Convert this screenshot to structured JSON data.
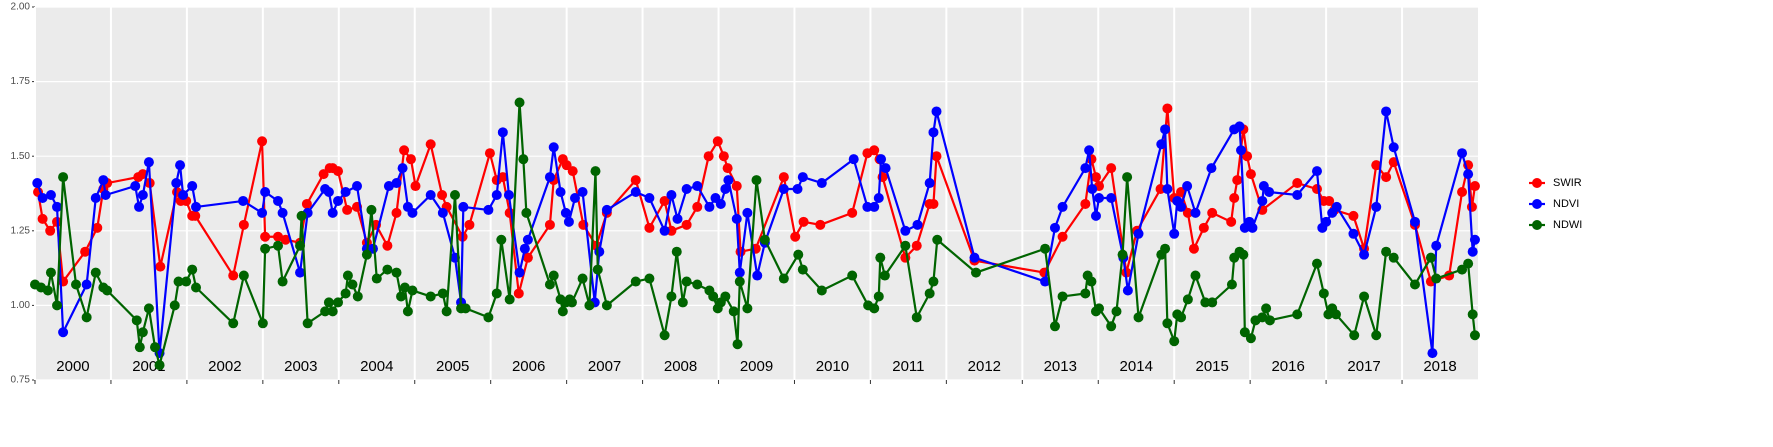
{
  "chart_data": {
    "type": "line",
    "xlim": [
      2000,
      2019
    ],
    "xticks": [
      2000,
      2001,
      2002,
      2003,
      2004,
      2005,
      2006,
      2007,
      2008,
      2009,
      2010,
      2011,
      2012,
      2013,
      2014,
      2015,
      2016,
      2017,
      2018
    ],
    "ylim": [
      0.75,
      2.0
    ],
    "yticks": [
      {
        "value": 0.75,
        "label": "0.75"
      },
      {
        "value": 1.0,
        "label": "1.00"
      },
      {
        "value": 1.25,
        "label": "1.25"
      },
      {
        "value": 1.5,
        "label": "1.50"
      },
      {
        "value": 1.75,
        "label": "1.75"
      },
      {
        "value": 2.0,
        "label": "2.00"
      }
    ],
    "grid": true,
    "legend": "right",
    "series": [
      {
        "name": "SWIR",
        "color": "#ff0000",
        "x": [
          2000.04,
          2000.1,
          2000.2,
          2000.29,
          2000.37,
          2000.66,
          2000.82,
          2000.9,
          2000.95,
          2001.36,
          2001.42,
          2001.51,
          2001.65,
          2001.87,
          2001.92,
          2001.99,
          2002.07,
          2002.11,
          2002.61,
          2002.75,
          2002.99,
          2003.03,
          2003.2,
          2003.3,
          2003.49,
          2003.58,
          2003.8,
          2003.88,
          2003.92,
          2003.99,
          2004.11,
          2004.24,
          2004.37,
          2004.49,
          2004.64,
          2004.76,
          2004.86,
          2004.95,
          2005.01,
          2005.21,
          2005.36,
          2005.42,
          2005.63,
          2005.72,
          2005.99,
          2006.08,
          2006.16,
          2006.25,
          2006.37,
          2006.49,
          2006.78,
          2006.83,
          2006.95,
          2007.0,
          2007.08,
          2007.22,
          2007.39,
          2007.53,
          2007.91,
          2008.09,
          2008.29,
          2008.38,
          2008.58,
          2008.72,
          2008.87,
          2008.99,
          2009.07,
          2009.12,
          2009.24,
          2009.29,
          2009.49,
          2009.86,
          2010.01,
          2010.12,
          2010.34,
          2010.76,
          2010.96,
          2011.05,
          2011.12,
          2011.16,
          2011.46,
          2011.61,
          2011.78,
          2011.83,
          2011.87,
          2012.37,
          2013.29,
          2013.53,
          2013.83,
          2013.91,
          2013.97,
          2014.01,
          2014.17,
          2014.37,
          2014.51,
          2014.82,
          2014.91,
          2015.0,
          2015.09,
          2015.18,
          2015.26,
          2015.39,
          2015.5,
          2015.75,
          2015.79,
          2015.83,
          2015.91,
          2015.96,
          2016.01,
          2016.16,
          2016.62,
          2016.88,
          2016.97,
          2017.04,
          2017.11,
          2017.36,
          2017.5,
          2017.66,
          2017.79,
          2017.89,
          2018.17,
          2018.38,
          2018.62,
          2018.79,
          2018.87,
          2018.92,
          2018.96
        ],
        "values": [
          1.38,
          1.29,
          1.25,
          1.28,
          1.08,
          1.18,
          1.26,
          1.39,
          1.41,
          1.43,
          1.44,
          1.41,
          1.13,
          1.38,
          1.35,
          1.35,
          1.3,
          1.3,
          1.1,
          1.27,
          1.55,
          1.23,
          1.23,
          1.22,
          1.21,
          1.34,
          1.44,
          1.46,
          1.46,
          1.45,
          1.32,
          1.33,
          1.21,
          1.27,
          1.2,
          1.31,
          1.52,
          1.49,
          1.4,
          1.54,
          1.37,
          1.33,
          1.23,
          1.27,
          1.51,
          1.42,
          1.43,
          1.31,
          1.04,
          1.16,
          1.27,
          1.42,
          1.49,
          1.47,
          1.45,
          1.27,
          1.2,
          1.31,
          1.42,
          1.26,
          1.35,
          1.25,
          1.27,
          1.33,
          1.5,
          1.55,
          1.5,
          1.46,
          1.4,
          1.18,
          1.19,
          1.43,
          1.23,
          1.28,
          1.27,
          1.31,
          1.51,
          1.52,
          1.49,
          1.43,
          1.16,
          1.2,
          1.34,
          1.34,
          1.5,
          1.15,
          1.11,
          1.23,
          1.34,
          1.49,
          1.43,
          1.4,
          1.46,
          1.11,
          1.25,
          1.39,
          1.66,
          1.36,
          1.38,
          1.31,
          1.19,
          1.26,
          1.31,
          1.28,
          1.36,
          1.42,
          1.59,
          1.5,
          1.44,
          1.32,
          1.41,
          1.39,
          1.35,
          1.35,
          1.32,
          1.3,
          1.19,
          1.47,
          1.43,
          1.48,
          1.27,
          1.08,
          1.1,
          1.38,
          1.47,
          1.33,
          1.4
        ]
      },
      {
        "name": "NDVI",
        "color": "#0000ff",
        "x": [
          2000.03,
          2000.1,
          2000.21,
          2000.29,
          2000.37,
          2000.68,
          2000.8,
          2000.9,
          2000.93,
          2001.32,
          2001.37,
          2001.42,
          2001.5,
          2001.64,
          2001.86,
          2001.91,
          2001.95,
          2002.07,
          2002.12,
          2002.74,
          2002.99,
          2003.03,
          2003.2,
          2003.26,
          2003.49,
          2003.59,
          2003.82,
          2003.87,
          2003.92,
          2003.99,
          2004.09,
          2004.24,
          2004.37,
          2004.45,
          2004.66,
          2004.76,
          2004.84,
          2004.91,
          2004.97,
          2005.21,
          2005.37,
          2005.53,
          2005.61,
          2005.64,
          2005.97,
          2006.08,
          2006.16,
          2006.24,
          2006.38,
          2006.45,
          2006.49,
          2006.78,
          2006.83,
          2006.92,
          2006.99,
          2007.03,
          2007.11,
          2007.21,
          2007.37,
          2007.43,
          2007.53,
          2007.91,
          2008.09,
          2008.29,
          2008.38,
          2008.46,
          2008.58,
          2008.72,
          2008.88,
          2008.96,
          2009.03,
          2009.09,
          2009.13,
          2009.24,
          2009.28,
          2009.38,
          2009.51,
          2009.61,
          2009.86,
          2010.04,
          2010.11,
          2010.36,
          2010.78,
          2010.96,
          2011.05,
          2011.11,
          2011.14,
          2011.2,
          2011.46,
          2011.62,
          2011.78,
          2011.83,
          2011.87,
          2012.37,
          2013.3,
          2013.43,
          2013.53,
          2013.83,
          2013.88,
          2013.92,
          2013.97,
          2014.01,
          2014.17,
          2014.33,
          2014.39,
          2014.53,
          2014.83,
          2014.88,
          2014.91,
          2015.0,
          2015.04,
          2015.09,
          2015.17,
          2015.28,
          2015.49,
          2015.79,
          2015.86,
          2015.88,
          2015.93,
          2015.99,
          2016.03,
          2016.16,
          2016.18,
          2016.25,
          2016.62,
          2016.88,
          2016.95,
          2017.0,
          2017.08,
          2017.14,
          2017.36,
          2017.5,
          2017.66,
          2017.79,
          2017.89,
          2018.17,
          2018.4,
          2018.45,
          2018.79,
          2018.87,
          2018.93,
          2018.96
        ],
        "values": [
          1.41,
          1.36,
          1.37,
          1.33,
          0.91,
          1.07,
          1.36,
          1.42,
          1.37,
          1.4,
          1.33,
          1.37,
          1.48,
          0.84,
          1.41,
          1.47,
          1.37,
          1.4,
          1.33,
          1.35,
          1.31,
          1.38,
          1.35,
          1.31,
          1.11,
          1.31,
          1.39,
          1.38,
          1.31,
          1.35,
          1.38,
          1.4,
          1.19,
          1.19,
          1.4,
          1.41,
          1.46,
          1.33,
          1.31,
          1.37,
          1.31,
          1.16,
          1.01,
          1.33,
          1.32,
          1.37,
          1.58,
          1.37,
          1.11,
          1.19,
          1.22,
          1.43,
          1.53,
          1.38,
          1.31,
          1.28,
          1.36,
          1.38,
          1.01,
          1.18,
          1.32,
          1.38,
          1.36,
          1.25,
          1.37,
          1.29,
          1.39,
          1.4,
          1.33,
          1.36,
          1.34,
          1.39,
          1.42,
          1.29,
          1.11,
          1.31,
          1.1,
          1.21,
          1.39,
          1.39,
          1.43,
          1.41,
          1.49,
          1.33,
          1.33,
          1.36,
          1.49,
          1.46,
          1.25,
          1.27,
          1.41,
          1.58,
          1.65,
          1.16,
          1.08,
          1.26,
          1.33,
          1.46,
          1.52,
          1.39,
          1.3,
          1.36,
          1.36,
          1.16,
          1.05,
          1.24,
          1.54,
          1.59,
          1.39,
          1.24,
          1.35,
          1.33,
          1.4,
          1.31,
          1.46,
          1.59,
          1.6,
          1.52,
          1.26,
          1.28,
          1.26,
          1.35,
          1.4,
          1.38,
          1.37,
          1.45,
          1.26,
          1.28,
          1.31,
          1.33,
          1.24,
          1.17,
          1.33,
          1.65,
          1.53,
          1.28,
          0.84,
          1.2,
          1.51,
          1.44,
          1.18,
          1.22
        ]
      },
      {
        "name": "NDWI",
        "color": "#006400",
        "x": [
          2000.0,
          2000.08,
          2000.17,
          2000.21,
          2000.29,
          2000.37,
          2000.54,
          2000.68,
          2000.8,
          2000.9,
          2000.95,
          2001.34,
          2001.38,
          2001.42,
          2001.5,
          2001.58,
          2001.64,
          2001.84,
          2001.89,
          2001.99,
          2002.07,
          2002.12,
          2002.61,
          2002.75,
          2003.0,
          2003.03,
          2003.2,
          2003.26,
          2003.49,
          2003.51,
          2003.59,
          2003.82,
          2003.87,
          2003.92,
          2003.99,
          2004.09,
          2004.12,
          2004.18,
          2004.25,
          2004.37,
          2004.43,
          2004.5,
          2004.64,
          2004.76,
          2004.82,
          2004.87,
          2004.91,
          2004.97,
          2005.21,
          2005.37,
          2005.42,
          2005.53,
          2005.61,
          2005.67,
          2005.97,
          2006.08,
          2006.14,
          2006.25,
          2006.38,
          2006.43,
          2006.47,
          2006.78,
          2006.83,
          2006.92,
          2006.95,
          2006.99,
          2007.04,
          2007.07,
          2007.21,
          2007.3,
          2007.38,
          2007.41,
          2007.53,
          2007.91,
          2008.09,
          2008.29,
          2008.38,
          2008.45,
          2008.53,
          2008.58,
          2008.72,
          2008.88,
          2008.93,
          2008.99,
          2009.03,
          2009.09,
          2009.2,
          2009.25,
          2009.28,
          2009.38,
          2009.5,
          2009.61,
          2009.86,
          2010.05,
          2010.11,
          2010.36,
          2010.76,
          2010.97,
          2011.05,
          2011.11,
          2011.13,
          2011.19,
          2011.46,
          2011.61,
          2011.78,
          2011.83,
          2011.88,
          2012.39,
          2013.3,
          2013.43,
          2013.53,
          2013.83,
          2013.86,
          2013.91,
          2013.97,
          2014.01,
          2014.17,
          2014.24,
          2014.32,
          2014.38,
          2014.53,
          2014.83,
          2014.88,
          2014.91,
          2015.0,
          2015.04,
          2015.09,
          2015.18,
          2015.28,
          2015.41,
          2015.5,
          2015.76,
          2015.79,
          2015.86,
          2015.91,
          2015.93,
          2016.01,
          2016.07,
          2016.16,
          2016.21,
          2016.26,
          2016.62,
          2016.88,
          2016.97,
          2017.03,
          2017.08,
          2017.13,
          2017.37,
          2017.5,
          2017.66,
          2017.79,
          2017.89,
          2018.17,
          2018.38,
          2018.45,
          2018.79,
          2018.87,
          2018.93,
          2018.96
        ],
        "values": [
          1.07,
          1.06,
          1.05,
          1.11,
          1.0,
          1.43,
          1.07,
          0.96,
          1.11,
          1.06,
          1.05,
          0.95,
          0.86,
          0.91,
          0.99,
          0.86,
          0.8,
          1.0,
          1.08,
          1.08,
          1.12,
          1.06,
          0.94,
          1.1,
          0.94,
          1.19,
          1.2,
          1.08,
          1.2,
          1.3,
          0.94,
          0.98,
          1.01,
          0.98,
          1.01,
          1.04,
          1.1,
          1.07,
          1.03,
          1.17,
          1.32,
          1.09,
          1.12,
          1.11,
          1.03,
          1.06,
          0.98,
          1.05,
          1.03,
          1.04,
          0.98,
          1.37,
          0.99,
          0.99,
          0.96,
          1.04,
          1.22,
          1.02,
          1.68,
          1.49,
          1.31,
          1.07,
          1.1,
          1.02,
          0.98,
          1.01,
          1.02,
          1.01,
          1.09,
          1.0,
          1.45,
          1.12,
          1.0,
          1.08,
          1.09,
          0.9,
          1.03,
          1.18,
          1.01,
          1.08,
          1.07,
          1.05,
          1.03,
          0.99,
          1.01,
          1.03,
          0.98,
          0.87,
          1.08,
          0.99,
          1.42,
          1.22,
          1.09,
          1.17,
          1.12,
          1.05,
          1.1,
          1.0,
          0.99,
          1.03,
          1.16,
          1.1,
          1.2,
          0.96,
          1.04,
          1.08,
          1.22,
          1.11,
          1.19,
          0.93,
          1.03,
          1.04,
          1.1,
          1.08,
          0.98,
          0.99,
          0.93,
          0.98,
          1.17,
          1.43,
          0.96,
          1.17,
          1.19,
          0.94,
          0.88,
          0.97,
          0.96,
          1.02,
          1.1,
          1.01,
          1.01,
          1.07,
          1.16,
          1.18,
          1.17,
          0.91,
          0.89,
          0.95,
          0.96,
          0.99,
          0.95,
          0.97,
          1.14,
          1.04,
          0.97,
          0.99,
          0.97,
          0.9,
          1.03,
          0.9,
          1.18,
          1.16,
          1.07,
          1.16,
          1.09,
          1.12,
          1.14,
          0.97,
          0.9
        ]
      }
    ]
  }
}
